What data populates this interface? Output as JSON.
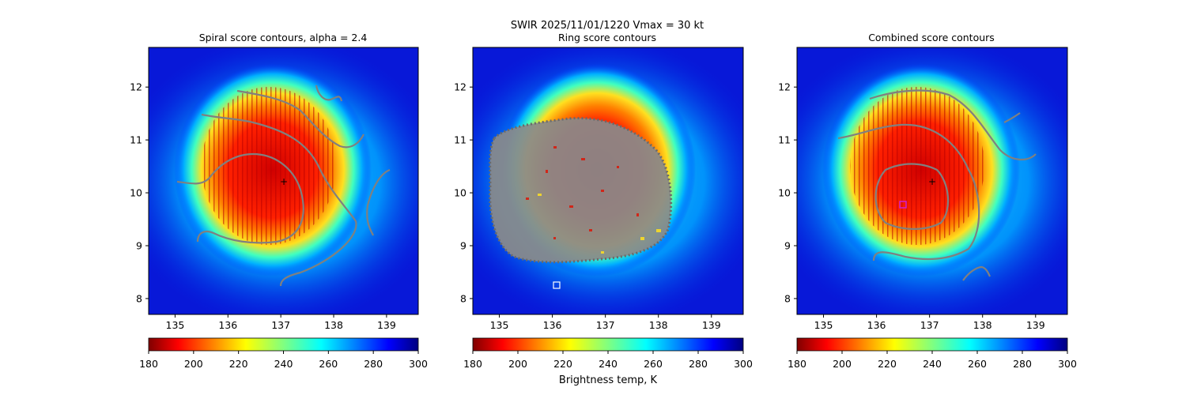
{
  "suptitle": {
    "line1": "SWIR  2025/11/01/1220    Vmax = 30 kt"
  },
  "colorbar": {
    "label": "Brightness temp, K",
    "ticks": [
      180,
      200,
      220,
      240,
      260,
      280,
      300
    ],
    "range": [
      180,
      300
    ],
    "colormap": "jet_r"
  },
  "chart_data": [
    {
      "type": "heatmap",
      "title": "Spiral score contours, alpha =  2.4",
      "xlim": [
        134.5,
        139.6
      ],
      "ylim": [
        7.7,
        12.75
      ],
      "xticks": [
        135,
        136,
        137,
        138,
        139
      ],
      "yticks": [
        8,
        9,
        10,
        11,
        12
      ],
      "center_marker": {
        "symbol": "+",
        "lon": 137.02,
        "lat": 10.23
      }
    },
    {
      "type": "heatmap",
      "title": "Ring score contours",
      "xlim": [
        134.5,
        139.6
      ],
      "ylim": [
        7.7,
        12.75
      ],
      "xticks": [
        135,
        136,
        137,
        138,
        139
      ],
      "yticks": [
        8,
        9,
        10,
        11,
        12
      ],
      "square_marker": {
        "symbol": "square",
        "lon": 136.05,
        "lat": 8.27
      }
    },
    {
      "type": "heatmap",
      "title": "Combined score contours",
      "xlim": [
        134.5,
        139.6
      ],
      "ylim": [
        7.7,
        12.75
      ],
      "xticks": [
        135,
        136,
        137,
        138,
        139
      ],
      "yticks": [
        8,
        9,
        10,
        11,
        12
      ],
      "center_marker": {
        "symbol": "+",
        "lon": 137.05,
        "lat": 10.23
      },
      "square_marker": {
        "symbol": "square",
        "lon": 136.5,
        "lat": 9.78
      }
    }
  ],
  "colors": {
    "contour": "#808080",
    "marker": "#ffffff",
    "square_combined": "#d020d0"
  }
}
